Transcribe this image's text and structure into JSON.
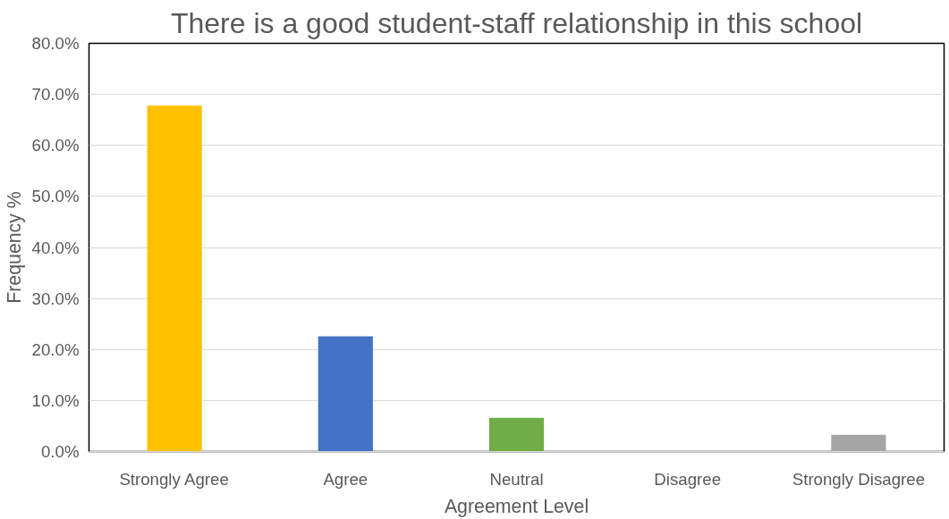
{
  "chart_data": {
    "type": "bar",
    "title": "There is a good student-staff relationship in this school",
    "xlabel": "Agreement Level",
    "ylabel": "Frequency %",
    "categories": [
      "Strongly Agree",
      "Agree",
      "Neutral",
      "Disagree",
      "Strongly Disagree"
    ],
    "values": [
      67.8,
      22.6,
      6.6,
      0,
      3.3
    ],
    "colors": [
      "#ffc000",
      "#4472c4",
      "#70ad47",
      null,
      "#a5a5a5"
    ],
    "ylim": [
      0,
      80
    ],
    "yticks": [
      {
        "value": 0,
        "label": "0.0%"
      },
      {
        "value": 10,
        "label": "10.0%"
      },
      {
        "value": 20,
        "label": "20.0%"
      },
      {
        "value": 30,
        "label": "30.0%"
      },
      {
        "value": 40,
        "label": "40.0%"
      },
      {
        "value": 50,
        "label": "50.0%"
      },
      {
        "value": 60,
        "label": "60.0%"
      },
      {
        "value": 70,
        "label": "70.0%"
      },
      {
        "value": 80,
        "label": "80.0%"
      }
    ],
    "grid": "y"
  }
}
